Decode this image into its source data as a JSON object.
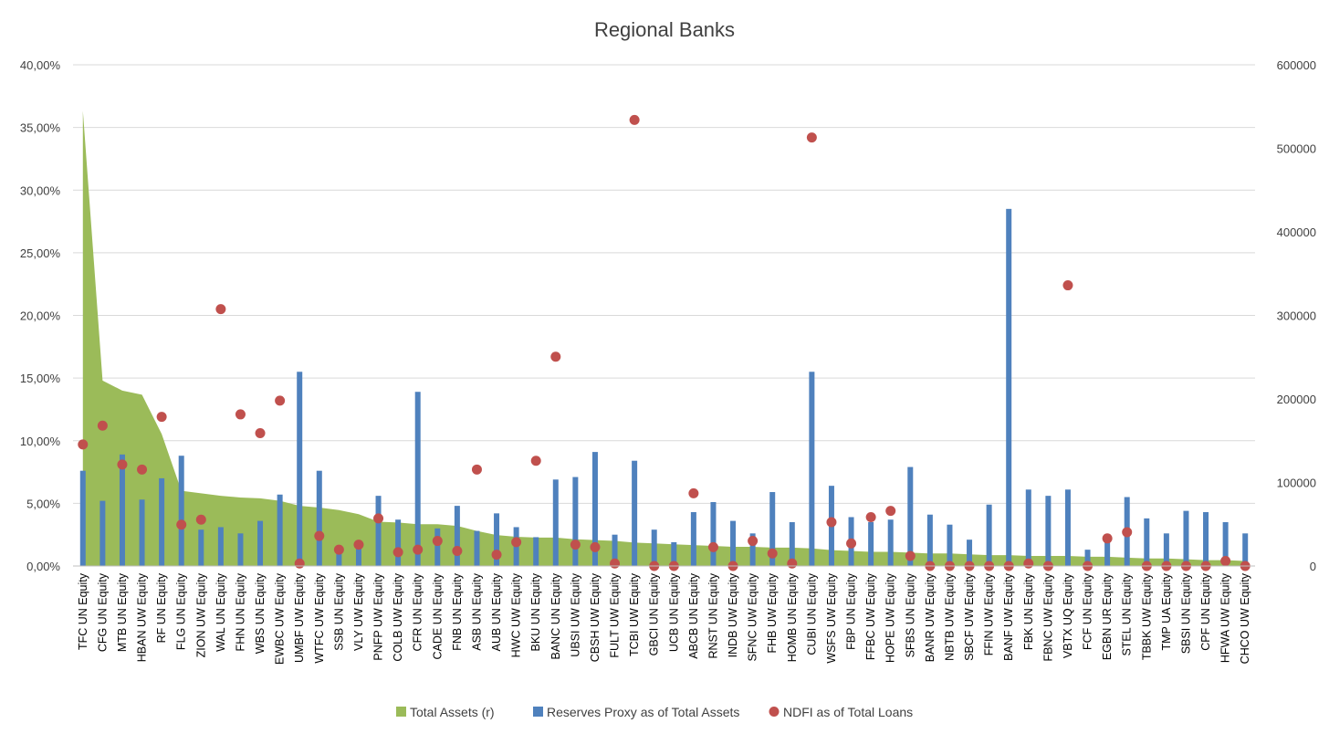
{
  "chart_data": {
    "type": "combo",
    "title": "Regional Banks",
    "categories": [
      "TFC UN Equity",
      "CFG UN Equity",
      "MTB UN Equity",
      "HBAN UW Equity",
      "RF UN Equity",
      "FLG UN Equity",
      "ZION UW Equity",
      "WAL UN Equity",
      "FHN UN Equity",
      "WBS UN Equity",
      "EWBC UW Equity",
      "UMBF UW Equity",
      "WTFC UW Equity",
      "SSB UN Equity",
      "VLY UW Equity",
      "PNFP UW Equity",
      "COLB UW Equity",
      "CFR UN Equity",
      "CADE UN Equity",
      "FNB UN Equity",
      "ASB UN Equity",
      "AUB UN Equity",
      "HWC UW Equity",
      "BKU UN Equity",
      "BANC UN Equity",
      "UBSI UW Equity",
      "CBSH UW Equity",
      "FULT UW Equity",
      "TCBI UW Equity",
      "GBCI UN Equity",
      "UCB UN Equity",
      "ABCB UN Equity",
      "RNST UN Equity",
      "INDB UW Equity",
      "SFNC UW Equity",
      "FHB UW Equity",
      "HOMB UN Equity",
      "CUBI UN Equity",
      "WSFS UW Equity",
      "FBP UN Equity",
      "FFBC UW Equity",
      "HOPE UW Equity",
      "SFBS UN Equity",
      "BANR UW Equity",
      "NBTB UW Equity",
      "SBCF UW Equity",
      "FFIN UW Equity",
      "BANF UW Equity",
      "FBK UN Equity",
      "FBNC UW Equity",
      "VBTX UQ Equity",
      "FCF UN Equity",
      "EGBN UR Equity",
      "STEL UN Equity",
      "TBBK UW Equity",
      "TMP UA Equity",
      "SBSI UN Equity",
      "CPF UN Equity",
      "HFWA UW Equity",
      "CHCO UW Equity"
    ],
    "left_axis": {
      "ticks": [
        "0,00%",
        "5,00%",
        "10,00%",
        "15,00%",
        "20,00%",
        "25,00%",
        "30,00%",
        "35,00%",
        "40,00%"
      ],
      "min": 0,
      "max": 0.4,
      "step": 0.05
    },
    "right_axis": {
      "ticks": [
        "0",
        "100000",
        "200000",
        "300000",
        "400000",
        "500000",
        "600000"
      ],
      "min": 0,
      "max": 600000,
      "step": 100000
    },
    "grid": true,
    "legend_position": "bottom",
    "series": [
      {
        "name": "Total Assets (r)",
        "type": "area",
        "axis": "right",
        "color": "#9bbb59",
        "values": [
          545000,
          222000,
          210000,
          205000,
          158000,
          90000,
          87000,
          84000,
          82000,
          81000,
          78000,
          72000,
          70000,
          67000,
          62000,
          53000,
          52000,
          50000,
          50000,
          48000,
          42000,
          37000,
          35000,
          34000,
          34000,
          32000,
          31000,
          30000,
          28000,
          27000,
          26000,
          25000,
          24000,
          23000,
          23000,
          22000,
          22000,
          21000,
          19000,
          18000,
          17000,
          17000,
          16000,
          15000,
          15000,
          14000,
          13000,
          13000,
          12000,
          12000,
          12000,
          11000,
          11000,
          10000,
          9000,
          9000,
          8000,
          7000,
          7000,
          6000
        ]
      },
      {
        "name": "Reserves Proxy as of Total Assets",
        "type": "bar",
        "axis": "left",
        "color": "#4f81bd",
        "values": [
          0.076,
          0.052,
          0.089,
          0.053,
          0.07,
          0.088,
          0.029,
          0.031,
          0.026,
          0.036,
          0.057,
          0.155,
          0.076,
          0.013,
          0.014,
          0.056,
          0.037,
          0.139,
          0.03,
          0.048,
          0.028,
          0.042,
          0.031,
          0.023,
          0.069,
          0.071,
          0.091,
          0.025,
          0.084,
          0.029,
          0.019,
          0.043,
          0.051,
          0.036,
          0.026,
          0.059,
          0.035,
          0.155,
          0.064,
          0.039,
          0.035,
          0.037,
          0.079,
          0.041,
          0.033,
          0.021,
          0.049,
          0.285,
          0.061,
          0.056,
          0.061,
          0.013,
          0.021,
          0.055,
          0.038,
          0.026,
          0.044,
          0.043,
          0.035,
          0.026
        ]
      },
      {
        "name": "NDFI as of Total Loans",
        "type": "scatter",
        "axis": "left",
        "color": "#c0504d",
        "values": [
          0.097,
          0.112,
          0.081,
          0.077,
          0.119,
          0.033,
          0.037,
          0.205,
          0.121,
          0.106,
          0.132,
          0.002,
          0.024,
          0.013,
          0.017,
          0.038,
          0.011,
          0.013,
          0.02,
          0.012,
          0.077,
          0.009,
          0.019,
          0.084,
          0.167,
          0.017,
          0.015,
          0.002,
          0.356,
          0.0,
          0.0,
          0.058,
          0.015,
          0.0,
          0.02,
          0.01,
          0.002,
          0.342,
          0.035,
          0.018,
          0.039,
          0.044,
          0.008,
          0.0,
          0.0,
          0.0,
          0.0,
          0.0,
          0.002,
          0.0,
          0.224,
          0.0,
          0.022,
          0.027,
          0.0,
          0.0,
          0.0,
          0.0,
          0.004,
          0.0
        ]
      }
    ]
  }
}
